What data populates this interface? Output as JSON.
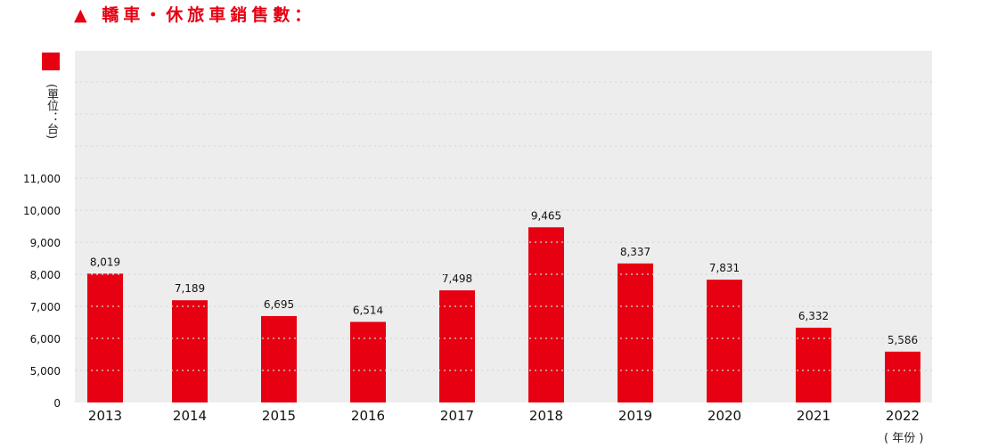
{
  "title": "▲ 轎車・休旅車銷售數：",
  "unit_label": "(單位：台)",
  "colors": {
    "bar": "#e60012",
    "plot_bg": "#ededed",
    "grid": "#d8d8d8"
  },
  "chart_data": {
    "type": "bar",
    "title": "轎車・休旅車銷售數：",
    "ylabel": "(單位：台)",
    "xlabel": "( 年份 )",
    "categories": [
      "2013",
      "2014",
      "2015",
      "2016",
      "2017",
      "2018",
      "2019",
      "2020",
      "2021",
      "2022"
    ],
    "values": [
      8019,
      7189,
      6695,
      6514,
      7498,
      9465,
      8337,
      7831,
      6332,
      5586
    ],
    "data_labels": [
      "8,019",
      "7,189",
      "6,695",
      "6,514",
      "7,498",
      "9,465",
      "8,337",
      "7,831",
      "6,332",
      "5,586"
    ],
    "yticks": [
      0,
      5000,
      6000,
      7000,
      8000,
      9000,
      10000,
      11000
    ],
    "ytick_labels": [
      "0",
      "5,000",
      "6,000",
      "7,000",
      "8,000",
      "9,000",
      "10,000",
      "11,000"
    ],
    "axis_break": "0 to 5,000 compressed",
    "ylim": [
      0,
      14000
    ],
    "grid": true,
    "legend": "top-left"
  }
}
